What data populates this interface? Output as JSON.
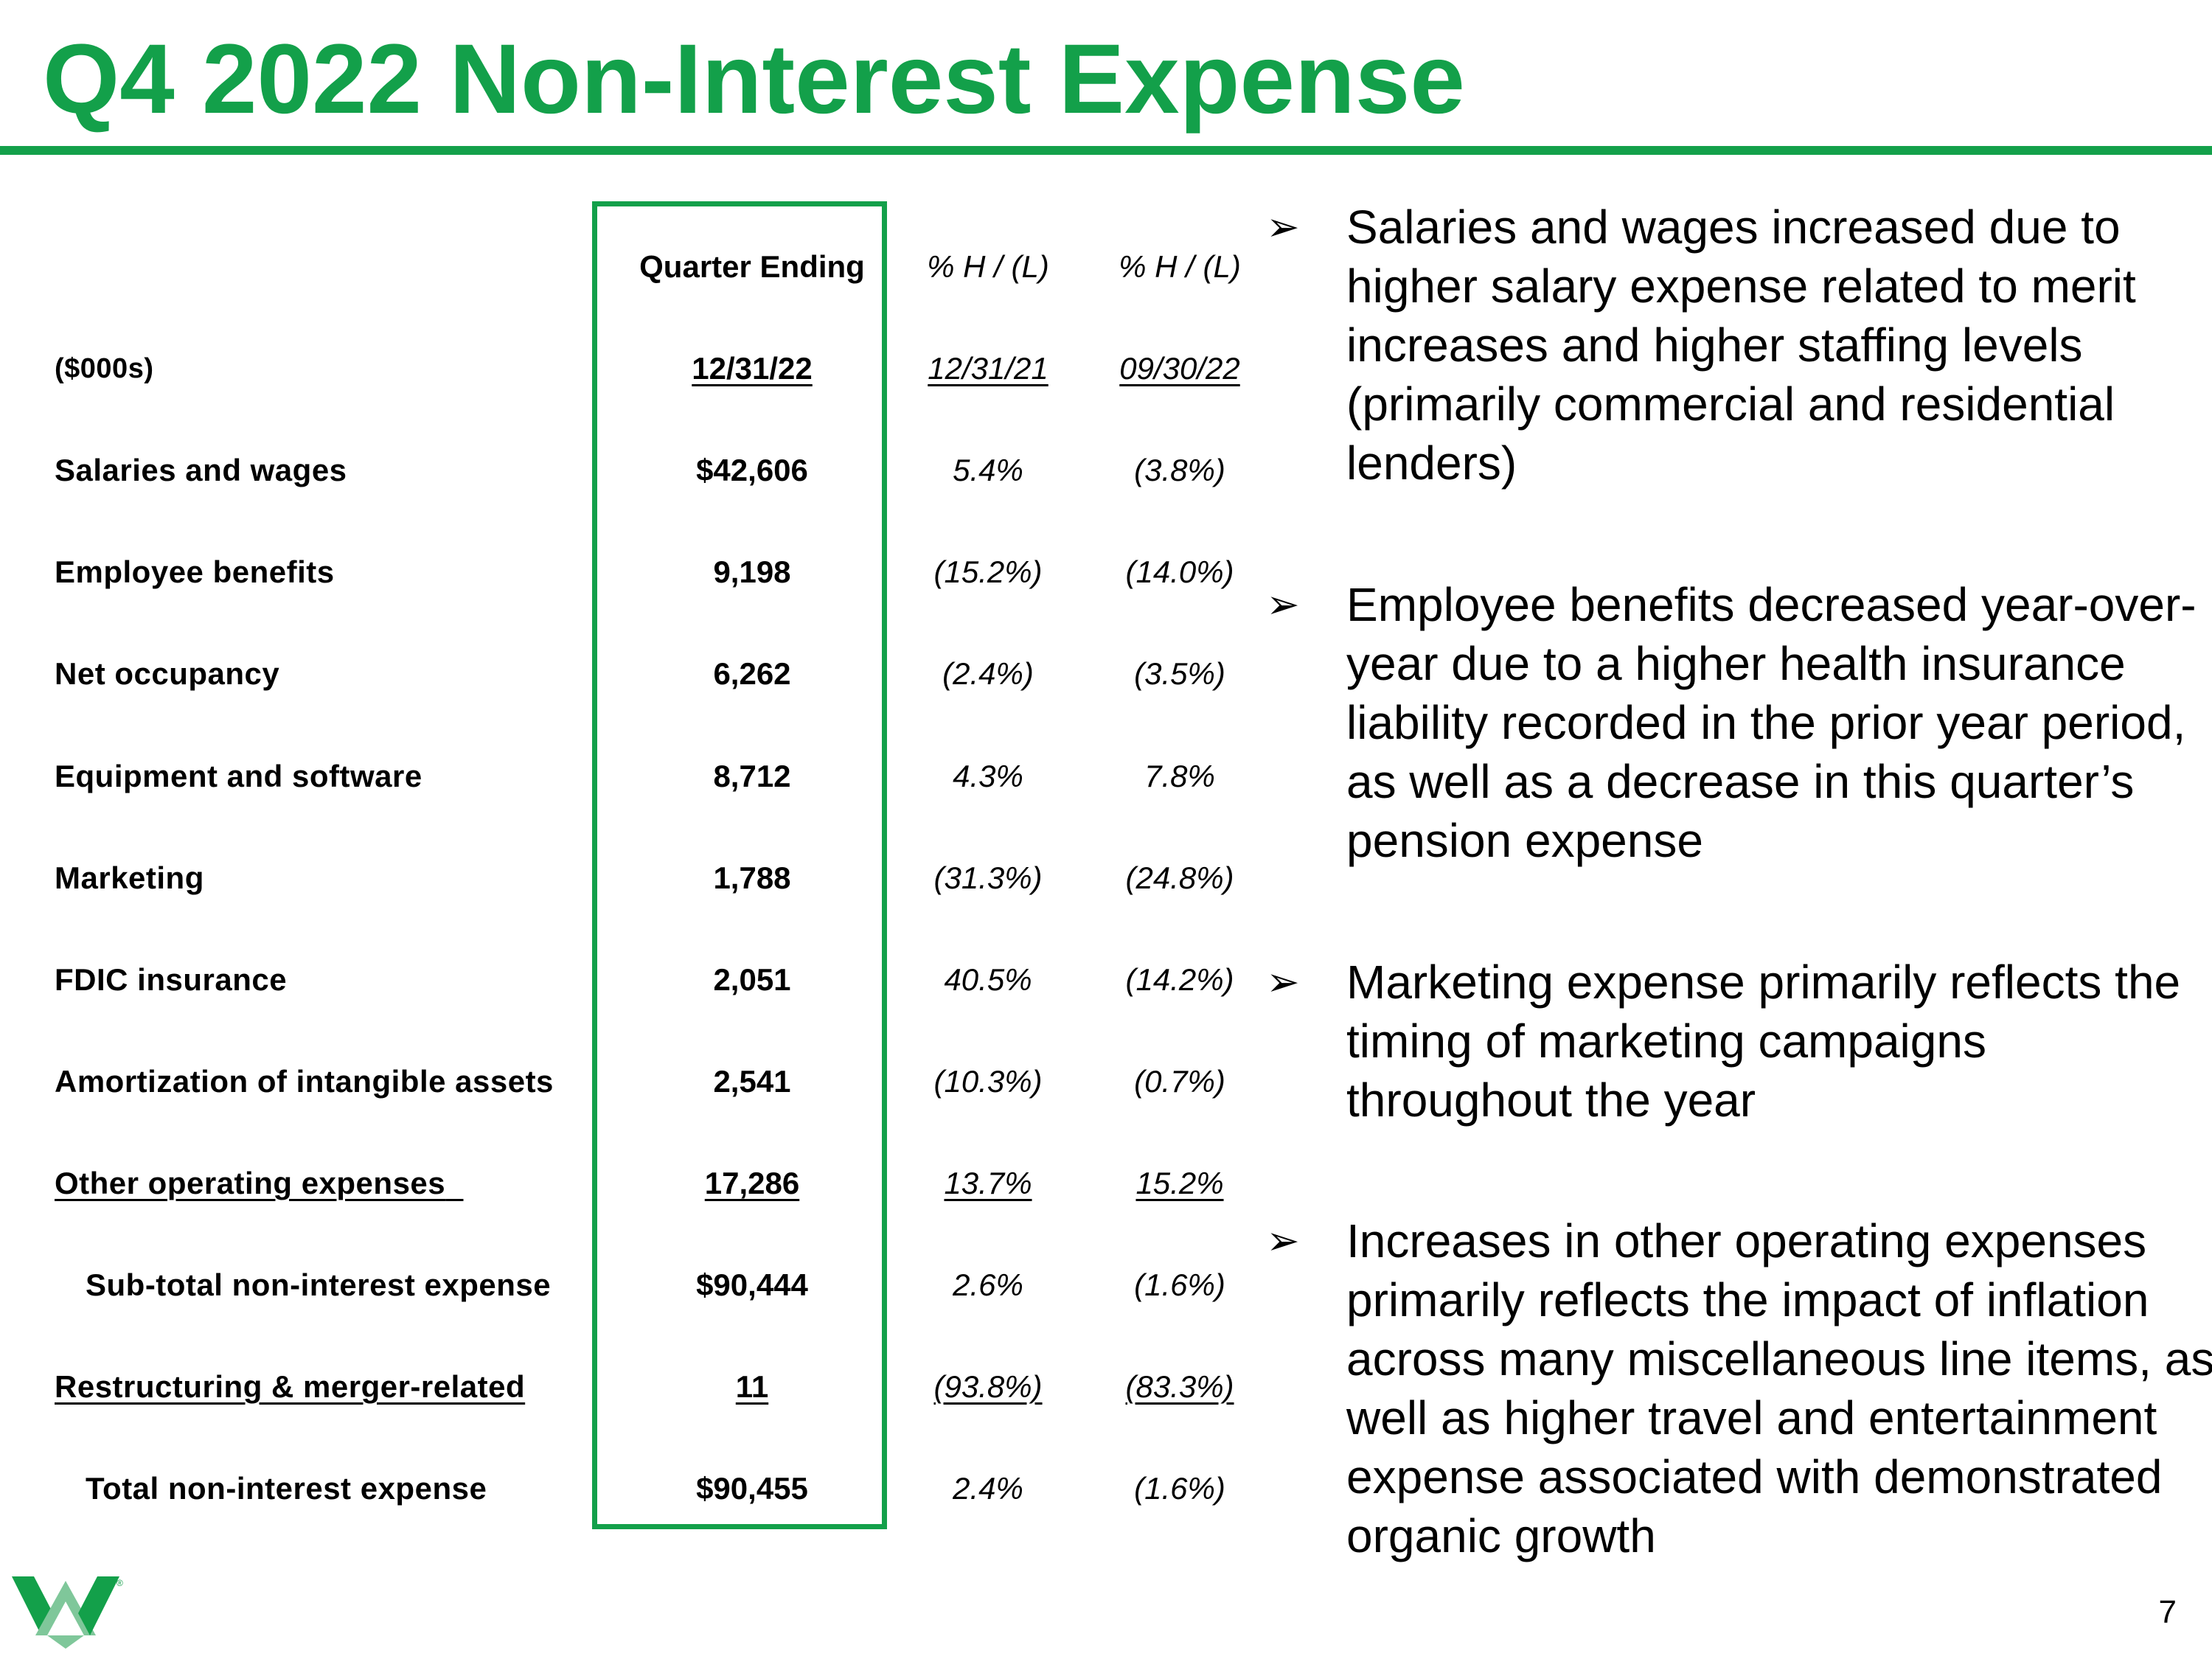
{
  "title": "Q4 2022 Non-Interest Expense",
  "colors": {
    "brand_green": "#13A04A",
    "logo_light_green": "#7FC79A"
  },
  "table": {
    "header_row1": {
      "quarter_ending": "Quarter Ending",
      "pct_col1": "% H / (L)",
      "pct_col2": "% H / (L)"
    },
    "header_row2": {
      "units": "($000s)",
      "quarter_date": "12/31/22",
      "pct_date1": "12/31/21",
      "pct_date2": "09/30/22"
    },
    "rows": [
      {
        "label": "Salaries and wages",
        "value": "$42,606",
        "pct1": "5.4%",
        "pct2": "(3.8%)"
      },
      {
        "label": "Employee benefits",
        "value": "9,198",
        "pct1": "(15.2%)",
        "pct2": "(14.0%)"
      },
      {
        "label": "Net occupancy",
        "value": "6,262",
        "pct1": "(2.4%)",
        "pct2": "(3.5%)"
      },
      {
        "label": "Equipment and software",
        "value": "8,712",
        "pct1": "4.3%",
        "pct2": "7.8%"
      },
      {
        "label": "Marketing",
        "value": "1,788",
        "pct1": "(31.3%)",
        "pct2": "(24.8%)"
      },
      {
        "label": "FDIC insurance",
        "value": "2,051",
        "pct1": "40.5%",
        "pct2": "(14.2%)"
      },
      {
        "label": "Amortization of intangible assets",
        "value": "2,541",
        "pct1": "(10.3%)",
        "pct2": "(0.7%)"
      },
      {
        "label": "Other operating expenses",
        "value": "17,286",
        "pct1": "13.7%",
        "pct2": "15.2%"
      },
      {
        "label": "Sub-total non-interest expense",
        "value": "$90,444",
        "pct1": "2.6%",
        "pct2": "(1.6%)"
      },
      {
        "label": "Restructuring & merger-related",
        "value": "11",
        "pct1": "(93.8%)",
        "pct2": "(83.3%)"
      },
      {
        "label": "Total non-interest expense",
        "value": "$90,455",
        "pct1": "2.4%",
        "pct2": "(1.6%)"
      }
    ]
  },
  "bullets": [
    "Salaries and wages increased due to higher salary expense related to merit increases and higher staffing levels (primarily commercial and residential lenders)",
    "Employee benefits decreased year-over-year due to a higher health insurance liability recorded in the prior year period, as well as a decrease in this quarter’s pension expense",
    "Marketing expense primarily reflects the timing of marketing campaigns throughout the year",
    "Increases in other operating expenses primarily reflects the impact of inflation across many miscellaneous line items, as well as higher travel and entertainment expense associated with demonstrated organic growth"
  ],
  "bullet_marker": "➢",
  "logo": {
    "registered_mark": "®"
  },
  "page_number": "7"
}
